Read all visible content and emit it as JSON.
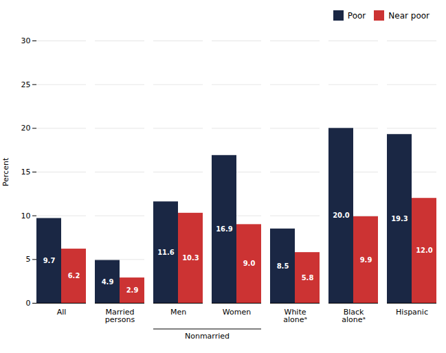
{
  "chart_data": {
    "type": "bar",
    "categories": [
      "All",
      "Married\npersons",
      "Men",
      "Women",
      "White\naloneᵃ",
      "Black\naloneᵃ",
      "Hispanic"
    ],
    "series": [
      {
        "name": "Poor",
        "color": "#1a2744",
        "values": [
          9.7,
          4.9,
          11.6,
          16.9,
          8.5,
          20.0,
          19.3
        ],
        "value_labels": [
          "9.7",
          "4.9",
          "11.6",
          "16.9",
          "8.5",
          "20.0",
          "19.3"
        ]
      },
      {
        "name": "Near poor",
        "color": "#cc3333",
        "values": [
          6.2,
          2.9,
          10.3,
          9.0,
          5.8,
          9.9,
          12.0
        ],
        "value_labels": [
          "6.2",
          "2.9",
          "10.3",
          "9.0",
          "5.8",
          "9.9",
          "12.0"
        ]
      }
    ],
    "ylabel": "Percent",
    "ylim": [
      0,
      30
    ],
    "yticks": [
      0,
      5,
      10,
      15,
      20,
      25,
      30
    ],
    "grid": true,
    "legend": "upper right",
    "data_labels": true,
    "annotations": [
      {
        "text": "Nonmarried",
        "categories": [
          "Men",
          "Women"
        ]
      }
    ]
  }
}
